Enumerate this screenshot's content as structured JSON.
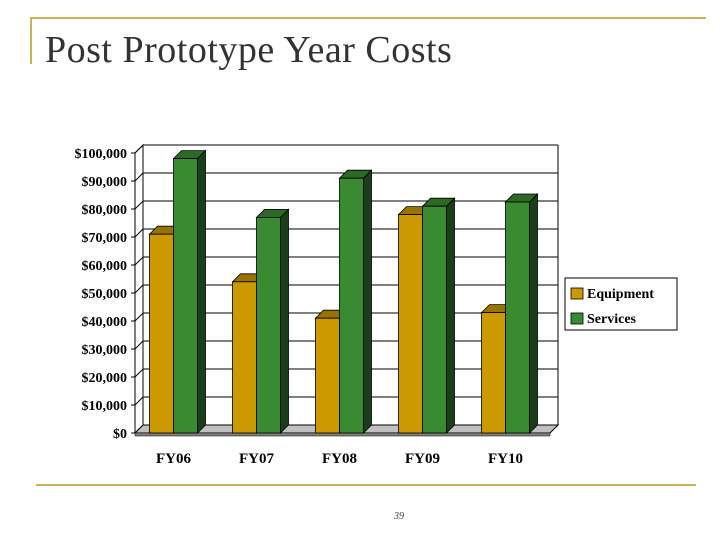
{
  "page": {
    "title": "Post Prototype Year Costs",
    "page_number": "39",
    "accent_color": "#c9b25a"
  },
  "chart_data": {
    "type": "bar",
    "title": "",
    "xlabel": "",
    "ylabel": "",
    "categories": [
      "FY06",
      "FY07",
      "FY08",
      "FY09",
      "FY10"
    ],
    "series": [
      {
        "name": "Equipment",
        "color": "#cc9900",
        "values": [
          71000,
          54000,
          41000,
          78000,
          43000
        ]
      },
      {
        "name": "Services",
        "color": "#3a8a32",
        "values": [
          98000,
          77000,
          91000,
          81000,
          82500
        ]
      }
    ],
    "ylim": [
      0,
      100000
    ],
    "yticks": [
      0,
      10000,
      20000,
      30000,
      40000,
      50000,
      60000,
      70000,
      80000,
      90000,
      100000
    ],
    "ytick_labels": [
      "$0",
      "$10,000",
      "$20,000",
      "$30,000",
      "$40,000",
      "$50,000",
      "$60,000",
      "$70,000",
      "$80,000",
      "$90,000",
      "$100,000"
    ],
    "grid": true,
    "legend": "right",
    "style": "3d-bar"
  }
}
